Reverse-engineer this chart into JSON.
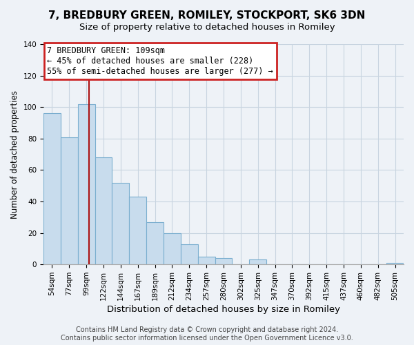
{
  "title": "7, BREDBURY GREEN, ROMILEY, STOCKPORT, SK6 3DN",
  "subtitle": "Size of property relative to detached houses in Romiley",
  "xlabel": "Distribution of detached houses by size in Romiley",
  "ylabel": "Number of detached properties",
  "categories": [
    "54sqm",
    "77sqm",
    "99sqm",
    "122sqm",
    "144sqm",
    "167sqm",
    "189sqm",
    "212sqm",
    "234sqm",
    "257sqm",
    "280sqm",
    "302sqm",
    "325sqm",
    "347sqm",
    "370sqm",
    "392sqm",
    "415sqm",
    "437sqm",
    "460sqm",
    "482sqm",
    "505sqm"
  ],
  "values": [
    96,
    81,
    102,
    68,
    52,
    43,
    27,
    20,
    13,
    5,
    4,
    0,
    3,
    0,
    0,
    0,
    0,
    0,
    0,
    0,
    1
  ],
  "bar_color": "#c8dced",
  "bar_edge_color": "#7aaecf",
  "annotation_text": "7 BREDBURY GREEN: 109sqm\n← 45% of detached houses are smaller (228)\n55% of semi-detached houses are larger (277) →",
  "annotation_box_color": "#ffffff",
  "annotation_box_edge_color": "#cc2222",
  "vline_color": "#aa1111",
  "vline_x": 2.15,
  "ylim": [
    0,
    140
  ],
  "yticks": [
    0,
    20,
    40,
    60,
    80,
    100,
    120,
    140
  ],
  "footnote": "Contains HM Land Registry data © Crown copyright and database right 2024.\nContains public sector information licensed under the Open Government Licence v3.0.",
  "bg_color": "#eef2f7",
  "plot_bg_color": "#eef2f7",
  "grid_color": "#c8d4e0",
  "title_fontsize": 11,
  "xlabel_fontsize": 9.5,
  "ylabel_fontsize": 8.5,
  "tick_fontsize": 7.5,
  "annotation_fontsize": 8.5,
  "footnote_fontsize": 7.0
}
